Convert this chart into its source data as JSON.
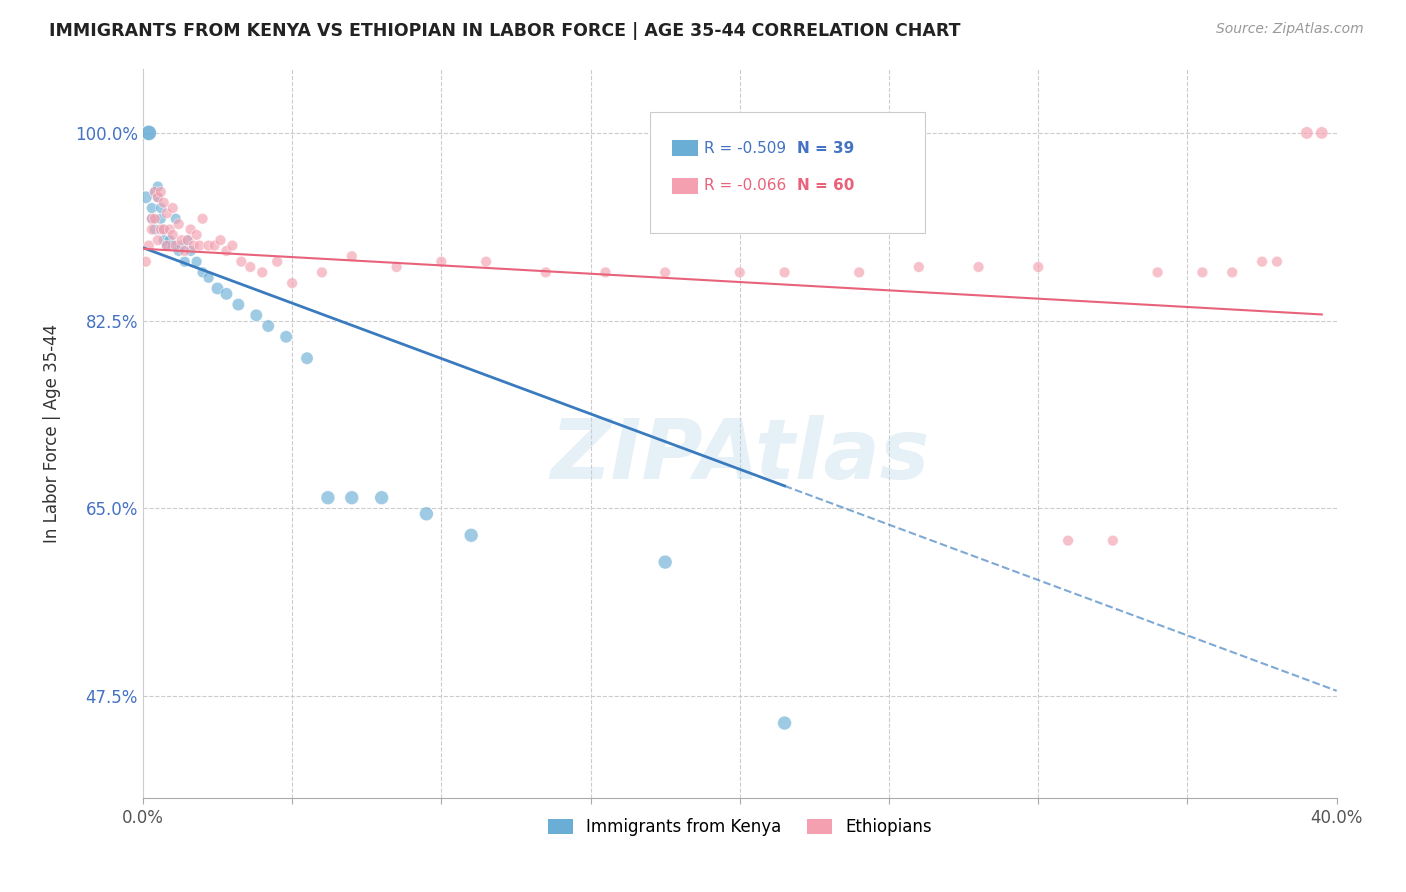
{
  "title": "IMMIGRANTS FROM KENYA VS ETHIOPIAN IN LABOR FORCE | AGE 35-44 CORRELATION CHART",
  "source": "Source: ZipAtlas.com",
  "ylabel": "In Labor Force | Age 35-44",
  "xlim": [
    0.0,
    0.4
  ],
  "ylim": [
    0.38,
    1.06
  ],
  "ytick_positions": [
    0.475,
    0.65,
    0.825,
    1.0
  ],
  "ytick_labels": [
    "47.5%",
    "65.0%",
    "82.5%",
    "100.0%"
  ],
  "kenya_R": -0.509,
  "kenya_N": 39,
  "ethiopian_R": -0.066,
  "ethiopian_N": 60,
  "kenya_color": "#6aaed6",
  "ethiopian_color": "#f4a0b0",
  "kenya_line_color": "#3a7bbf",
  "ethiopian_line_color": "#e8627a",
  "watermark": "ZIPAtlas",
  "kenya_x": [
    0.001,
    0.002,
    0.002,
    0.003,
    0.003,
    0.004,
    0.004,
    0.005,
    0.005,
    0.006,
    0.006,
    0.007,
    0.007,
    0.008,
    0.009,
    0.01,
    0.011,
    0.012,
    0.013,
    0.014,
    0.015,
    0.016,
    0.018,
    0.02,
    0.022,
    0.025,
    0.028,
    0.032,
    0.038,
    0.042,
    0.048,
    0.055,
    0.062,
    0.07,
    0.08,
    0.095,
    0.11,
    0.175,
    0.215
  ],
  "kenya_y": [
    0.94,
    1.0,
    1.0,
    0.93,
    0.92,
    0.945,
    0.91,
    0.95,
    0.94,
    0.93,
    0.92,
    0.9,
    0.91,
    0.895,
    0.9,
    0.895,
    0.92,
    0.89,
    0.895,
    0.88,
    0.9,
    0.89,
    0.88,
    0.87,
    0.865,
    0.855,
    0.85,
    0.84,
    0.83,
    0.82,
    0.81,
    0.79,
    0.66,
    0.66,
    0.66,
    0.645,
    0.625,
    0.6,
    0.45
  ],
  "kenya_sizes": [
    80,
    120,
    120,
    60,
    60,
    60,
    60,
    60,
    60,
    60,
    60,
    60,
    60,
    60,
    60,
    60,
    60,
    60,
    60,
    60,
    60,
    60,
    60,
    60,
    60,
    80,
    80,
    80,
    80,
    80,
    80,
    80,
    100,
    100,
    100,
    100,
    100,
    100,
    100
  ],
  "ethiopian_x": [
    0.001,
    0.002,
    0.003,
    0.003,
    0.004,
    0.004,
    0.005,
    0.005,
    0.006,
    0.006,
    0.007,
    0.007,
    0.008,
    0.008,
    0.009,
    0.01,
    0.01,
    0.011,
    0.012,
    0.013,
    0.014,
    0.015,
    0.016,
    0.017,
    0.018,
    0.019,
    0.02,
    0.022,
    0.024,
    0.026,
    0.028,
    0.03,
    0.033,
    0.036,
    0.04,
    0.045,
    0.05,
    0.06,
    0.07,
    0.085,
    0.1,
    0.115,
    0.135,
    0.155,
    0.175,
    0.2,
    0.215,
    0.24,
    0.26,
    0.28,
    0.3,
    0.31,
    0.325,
    0.34,
    0.355,
    0.365,
    0.375,
    0.38,
    0.39,
    0.395
  ],
  "ethiopian_y": [
    0.88,
    0.895,
    0.92,
    0.91,
    0.945,
    0.92,
    0.94,
    0.9,
    0.945,
    0.91,
    0.935,
    0.91,
    0.925,
    0.895,
    0.91,
    0.93,
    0.905,
    0.895,
    0.915,
    0.9,
    0.89,
    0.9,
    0.91,
    0.895,
    0.905,
    0.895,
    0.92,
    0.895,
    0.895,
    0.9,
    0.89,
    0.895,
    0.88,
    0.875,
    0.87,
    0.88,
    0.86,
    0.87,
    0.885,
    0.875,
    0.88,
    0.88,
    0.87,
    0.87,
    0.87,
    0.87,
    0.87,
    0.87,
    0.875,
    0.875,
    0.875,
    0.62,
    0.62,
    0.87,
    0.87,
    0.87,
    0.88,
    0.88,
    1.0,
    1.0
  ],
  "ethiopian_sizes": [
    60,
    60,
    60,
    60,
    60,
    60,
    60,
    60,
    60,
    60,
    60,
    60,
    60,
    60,
    60,
    60,
    60,
    60,
    60,
    60,
    60,
    60,
    60,
    60,
    60,
    60,
    60,
    60,
    60,
    60,
    60,
    60,
    60,
    60,
    60,
    60,
    60,
    60,
    60,
    60,
    60,
    60,
    60,
    60,
    60,
    60,
    60,
    60,
    60,
    60,
    60,
    60,
    60,
    60,
    60,
    60,
    60,
    60,
    80,
    80
  ],
  "kenya_line_x0": 0.0,
  "kenya_line_y0": 0.893,
  "kenya_line_x1": 0.4,
  "kenya_line_y1": 0.48,
  "ethiopian_line_x0": 0.0,
  "ethiopian_line_y0": 0.892,
  "ethiopian_line_x1": 0.4,
  "ethiopian_line_y1": 0.83
}
